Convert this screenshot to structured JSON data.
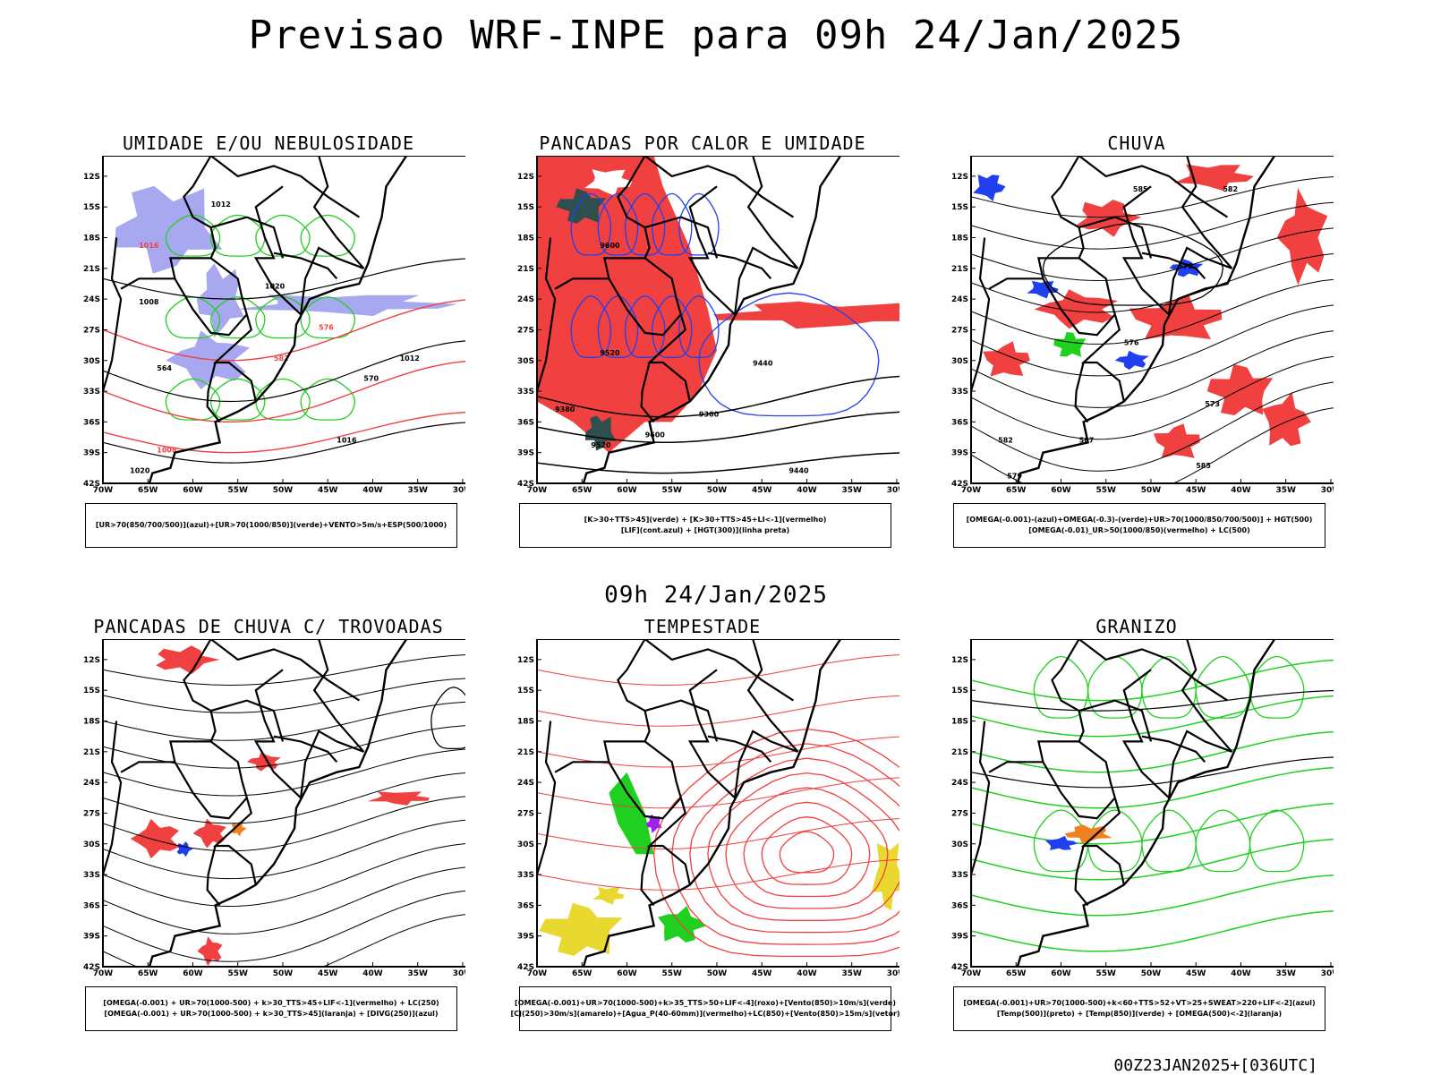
{
  "title": "Previsao WRF-INPE  para 09h 24/Jan/2025",
  "mid_label": "09h 24/Jan/2025",
  "footer": "00Z23JAN2025+[036UTC]",
  "lat_labels": [
    "12S",
    "15S",
    "18S",
    "21S",
    "24S",
    "27S",
    "30S",
    "33S",
    "36S",
    "39S",
    "42S"
  ],
  "lon_labels": [
    "70W",
    "65W",
    "60W",
    "55W",
    "50W",
    "45W",
    "40W",
    "35W",
    "30W"
  ],
  "colors": {
    "red": "#f04040",
    "green": "#20d020",
    "blue": "#2040f0",
    "lavender": "#a8a8f0",
    "dark_teal": "#2f4f4f",
    "yellow": "#e8d830",
    "orange": "#f08020",
    "purple": "#a020f0"
  },
  "panels": [
    {
      "title": "UMIDADE E/OU NEBULOSIDADE",
      "legend": [
        "[UR>70(850/700/500)](azul)+[UR>70(1000/850)](verde)+VENTO>5m/s+ESP(500/1000)"
      ],
      "contour_labels": [
        "1012",
        "1016",
        "1008",
        "1020",
        "576",
        "570",
        "564",
        "582"
      ]
    },
    {
      "title": "PANCADAS POR CALOR E UMIDADE",
      "legend": [
        "[K>30+TTS>45](verde) + [K>30+TTS>45+LI<-1](vermelho)",
        "[LIF](cont.azul) + [HGT(300)](linha preta)"
      ],
      "contour_labels": [
        "9600",
        "9520",
        "9440",
        "9380",
        "9360"
      ]
    },
    {
      "title": "CHUVA",
      "legend": [
        "[OMEGA(-0.001)-(azul)+OMEGA(-0.3)-(verde)+UR>70(1000/850/700/500)] + HGT(500)",
        "[OMEGA(-0.01)_UR>50(1000/850)(vermelho) + LC(500)"
      ],
      "contour_labels": [
        "585",
        "582",
        "579",
        "576",
        "573",
        "567"
      ]
    },
    {
      "title": "PANCADAS DE CHUVA C/ TROVOADAS",
      "legend": [
        "[OMEGA(-0.001) + UR>70(1000-500) + k>30_TTS>45+LIF<-1](vermelho) + LC(250)",
        "[OMEGA(-0.001) + UR>70(1000-500) + k>30_TTS>45](laranja) + [DIVG(250)](azul)"
      ],
      "contour_labels": []
    },
    {
      "title": "TEMPESTADE",
      "legend": [
        "[OMEGA(-0.001)+UR>70(1000-500)+k>35_TTS>50+LIF<-4](roxo)+[Vento(850)>10m/s](verde)",
        "[CJ(250)>30m/s](amarelo)+[Agua_P(40-60mm)](vermelho)+LC(850)+[Vento(850)>15m/s](vetor)"
      ],
      "contour_labels": []
    },
    {
      "title": "GRANIZO",
      "legend": [
        "[OMEGA(-0.001)+UR>70(1000-500)+k<60+TTS>52+VT>25+SWEAT>220+LIF<-2](azul)",
        "[Temp(500)](preto) + [Temp(850)](verde) + [OMEGA(500)<-2](laranja)"
      ],
      "contour_labels": []
    }
  ]
}
